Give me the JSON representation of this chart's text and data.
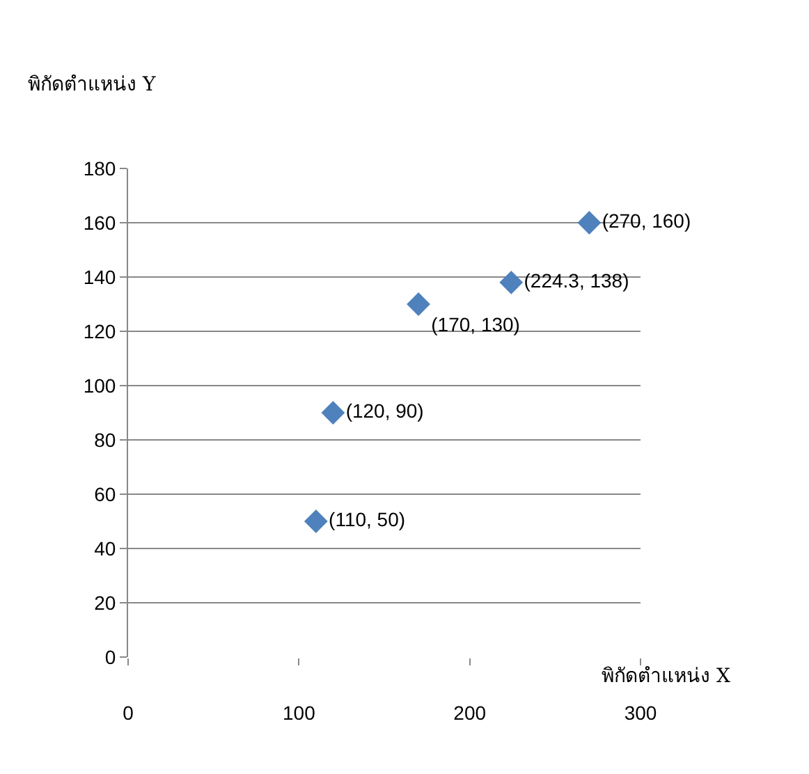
{
  "chart_data": {
    "type": "scatter",
    "xlabel": "พิกัดตำแหน่ง X",
    "ylabel": "พิกัดตำแหน่ง Y",
    "series": [
      {
        "color": "#4f81bd",
        "x": [
          110,
          120,
          170,
          224.3,
          270
        ],
        "values": [
          50,
          90,
          130,
          138,
          160
        ],
        "value_labels": [
          "(110, 50)",
          "(120, 90)",
          "(170, 130)",
          "(224.3, 138)",
          "(270, 160)"
        ]
      }
    ],
    "marker": "diamond",
    "xlim": [
      0,
      300
    ],
    "xticks": [
      0,
      100,
      200,
      300
    ],
    "ylim": [
      0,
      180
    ],
    "yticks": [
      0,
      20,
      40,
      60,
      80,
      100,
      120,
      140,
      160,
      180
    ],
    "grid": "y"
  }
}
